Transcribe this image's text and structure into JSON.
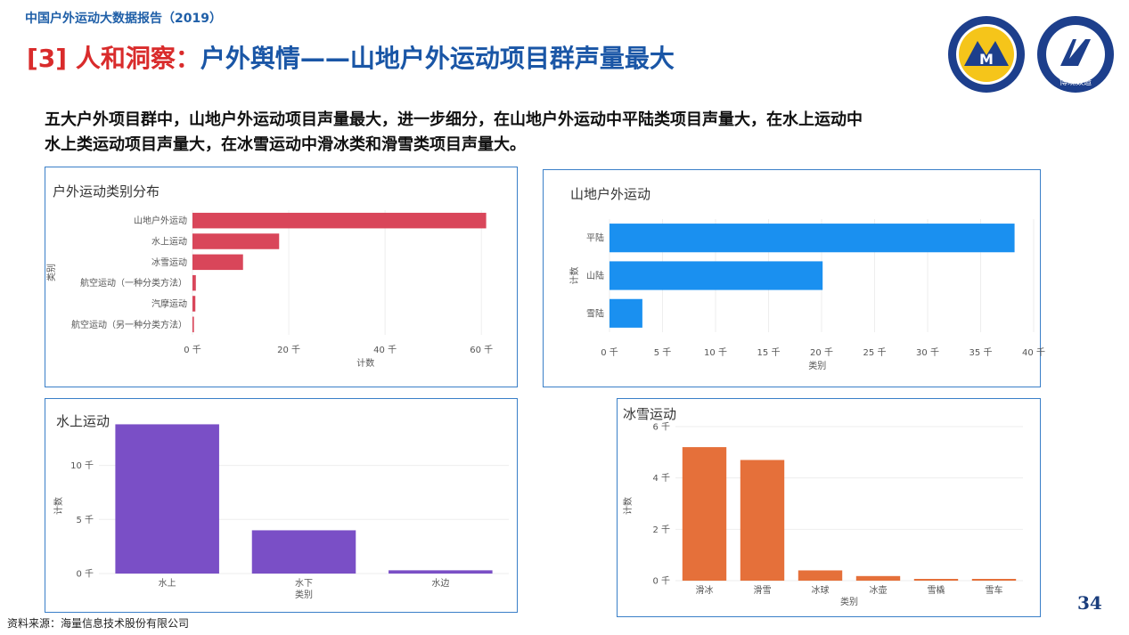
{
  "header": {
    "report_title": "中国户外运动大数据报告（2019）",
    "main_title_prefix": "[3] 人和洞察：",
    "main_title_rest": "户外舆情——山地户外运动项目群声量最大",
    "intro_line1": "五大户外项目群中，山地户外运动项目声量最大，进一步细分，在山地户外运动中平陆类项目声量大，在水上运动中",
    "intro_line2": "水上类运动项目声量大，在冰雪运动中滑冰类和滑雪类项目声量大。",
    "logo1_text": "M",
    "logo2_text": "博观数造"
  },
  "colors": {
    "title_blue": "#1a56a6",
    "title_red": "#d92b2b",
    "panel_border": "#3a7fc8",
    "chart1": "#d9465a",
    "chart2": "#1a90f0",
    "chart3": "#7a4fc6",
    "chart4": "#e5703a"
  },
  "footer": {
    "source": "资料来源：海量信息技术股份有限公司",
    "page_number": "34"
  },
  "chart_data": [
    {
      "type": "bar",
      "orientation": "horizontal",
      "title": "户外运动类别分布",
      "categories": [
        "山地户外运动",
        "水上运动",
        "冰雪运动",
        "航空运动（一种分类方法）",
        "汽摩运动",
        "航空运动（另一种分类方法）"
      ],
      "values": [
        61000,
        18000,
        10500,
        700,
        600,
        300
      ],
      "xlabel": "计数",
      "ylabel": "类别",
      "xlim": [
        0,
        62000
      ],
      "ticks": [
        0,
        20000,
        40000,
        60000
      ],
      "tick_labels": [
        "0 千",
        "20 千",
        "40 千",
        "60 千"
      ]
    },
    {
      "type": "bar",
      "orientation": "horizontal",
      "title": "山地户外运动",
      "categories": [
        "平陆",
        "山陆",
        "雪陆"
      ],
      "values": [
        38200,
        20100,
        3100
      ],
      "xlabel": "类别",
      "ylabel": "计数",
      "xlim": [
        0,
        40000
      ],
      "ticks": [
        0,
        5000,
        10000,
        15000,
        20000,
        25000,
        30000,
        35000,
        40000
      ],
      "tick_labels": [
        "0 千",
        "5 千",
        "10 千",
        "15 千",
        "20 千",
        "25 千",
        "30 千",
        "35 千",
        "40 千"
      ]
    },
    {
      "type": "bar",
      "orientation": "vertical",
      "title": "水上运动",
      "categories": [
        "水上",
        "水下",
        "水边"
      ],
      "values": [
        13800,
        4000,
        300
      ],
      "xlabel": "类别",
      "ylabel": "计数",
      "ylim": [
        0,
        14000
      ],
      "ticks": [
        0,
        5000,
        10000
      ],
      "tick_labels": [
        "0 千",
        "5 千",
        "10 千"
      ]
    },
    {
      "type": "bar",
      "orientation": "vertical",
      "title": "冰雪运动",
      "categories": [
        "滑冰",
        "滑雪",
        "冰球",
        "冰壶",
        "雪橇",
        "雪车"
      ],
      "values": [
        5200,
        4700,
        400,
        180,
        50,
        40
      ],
      "xlabel": "类别",
      "ylabel": "计数",
      "ylim": [
        0,
        6000
      ],
      "ticks": [
        0,
        2000,
        4000,
        6000
      ],
      "tick_labels": [
        "0 千",
        "2 千",
        "4 千",
        "6 千"
      ]
    }
  ]
}
